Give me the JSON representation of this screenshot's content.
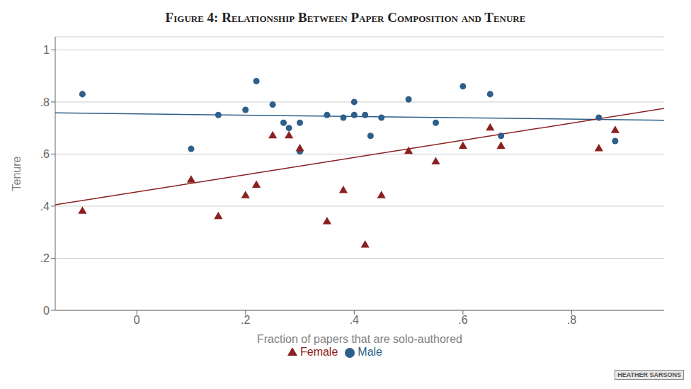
{
  "chart_data": {
    "type": "scatter",
    "title": "Figure 4: Relationship Between Paper Composition and Tenure",
    "xlabel": "Fraction of papers that are solo-authored",
    "ylabel": "Tenure",
    "xlim": [
      -0.15,
      0.97
    ],
    "ylim": [
      0,
      1.05
    ],
    "xticks": [
      0,
      {
        "value": 0.2,
        "label": ".2"
      },
      {
        "value": 0.4,
        "label": ".4"
      },
      {
        "value": 0.6,
        "label": ".6"
      },
      {
        "value": 0.8,
        "label": ".8"
      }
    ],
    "yticks": [
      0,
      {
        "value": 0.2,
        "label": ".2"
      },
      {
        "value": 0.4,
        "label": ".4"
      },
      {
        "value": 0.6,
        "label": ".6"
      },
      {
        "value": 0.8,
        "label": ".8"
      },
      1
    ],
    "grid": "y",
    "legend": "bottom",
    "annotation": "HEATHER SARSONS",
    "series": [
      {
        "name": "Male",
        "color": "#2d5f8a",
        "marker": "circle",
        "x": [
          -0.1,
          0.1,
          0.15,
          0.2,
          0.22,
          0.25,
          0.27,
          0.28,
          0.3,
          0.3,
          0.35,
          0.38,
          0.4,
          0.4,
          0.42,
          0.43,
          0.45,
          0.5,
          0.55,
          0.6,
          0.65,
          0.67,
          0.85,
          0.88
        ],
        "values": [
          0.83,
          0.62,
          0.75,
          0.77,
          0.88,
          0.79,
          0.72,
          0.7,
          0.72,
          0.61,
          0.75,
          0.74,
          0.8,
          0.75,
          0.75,
          0.67,
          0.74,
          0.81,
          0.72,
          0.86,
          0.83,
          0.67,
          0.74,
          0.65
        ],
        "fit_x": [
          -0.15,
          0.97
        ],
        "fit_y": [
          0.758,
          0.73
        ]
      },
      {
        "name": "Female",
        "color": "#8b2020",
        "marker": "triangle",
        "x": [
          -0.1,
          0.1,
          0.15,
          0.2,
          0.22,
          0.25,
          0.28,
          0.3,
          0.35,
          0.38,
          0.42,
          0.45,
          0.5,
          0.55,
          0.6,
          0.65,
          0.67,
          0.85,
          0.88
        ],
        "values": [
          0.38,
          0.5,
          0.36,
          0.44,
          0.48,
          0.67,
          0.67,
          0.62,
          0.34,
          0.46,
          0.25,
          0.44,
          0.61,
          0.57,
          0.63,
          0.7,
          0.63,
          0.62,
          0.69
        ],
        "fit_x": [
          -0.15,
          0.97
        ],
        "fit_y": [
          0.405,
          0.775
        ]
      }
    ]
  }
}
